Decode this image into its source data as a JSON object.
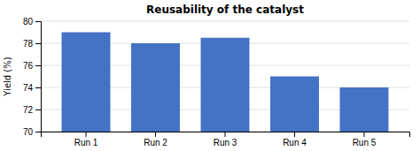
{
  "chart_data": {
    "type": "bar",
    "title": "Reusability of the catalyst",
    "categories": [
      "Run 1",
      "Run 2",
      "Run 3",
      "Run 4",
      "Run 5"
    ],
    "values": [
      79,
      78,
      78.5,
      75,
      74
    ],
    "color": "#4472C4",
    "ylabel": "Yield (%)",
    "ylim": [
      70,
      80
    ],
    "yticks": [
      70,
      72,
      74,
      76,
      78,
      80
    ],
    "grid": true
  }
}
